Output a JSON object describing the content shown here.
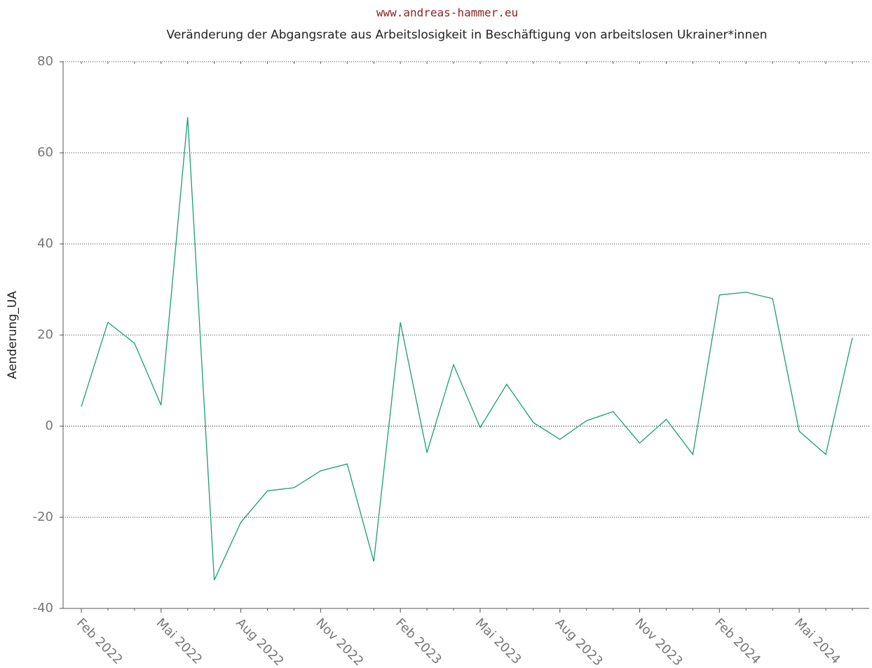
{
  "chart_data": {
    "type": "line",
    "header": "www.andreas-hammer.eu",
    "title": "Veränderung der Abgangsrate aus Arbeitslosigkeit in Beschäftigung von arbeitslosen Ukrainer*innen",
    "y_label": "Aenderung_UA",
    "categories": [
      "Feb 2022",
      null,
      null,
      "Mai 2022",
      null,
      null,
      "Aug 2022",
      null,
      null,
      "Nov 2022",
      null,
      null,
      "Feb 2023",
      null,
      null,
      "Mai 2023",
      null,
      null,
      "Aug 2023",
      null,
      null,
      "Nov 2023",
      null,
      null,
      "Feb 2024",
      null,
      null,
      "Mai 2024",
      null,
      null
    ],
    "series": [
      {
        "name": "Aenderung_UA",
        "color": "#1a9e77",
        "values": [
          4.3,
          22.8,
          18.2,
          4.6,
          67.8,
          -33.8,
          -21.1,
          -14.2,
          -13.5,
          -9.8,
          -8.3,
          -29.7,
          22.8,
          -5.8,
          13.5,
          -0.3,
          9.2,
          0.8,
          -2.9,
          1.2,
          3.2,
          -3.7,
          1.5,
          -6.2,
          28.8,
          29.4,
          28.0,
          -1.1,
          -6.2,
          19.4
        ]
      }
    ],
    "ylim": [
      -40,
      80
    ],
    "yticks": [
      -40,
      -20,
      0,
      20,
      40,
      60,
      80
    ],
    "grid": true
  }
}
